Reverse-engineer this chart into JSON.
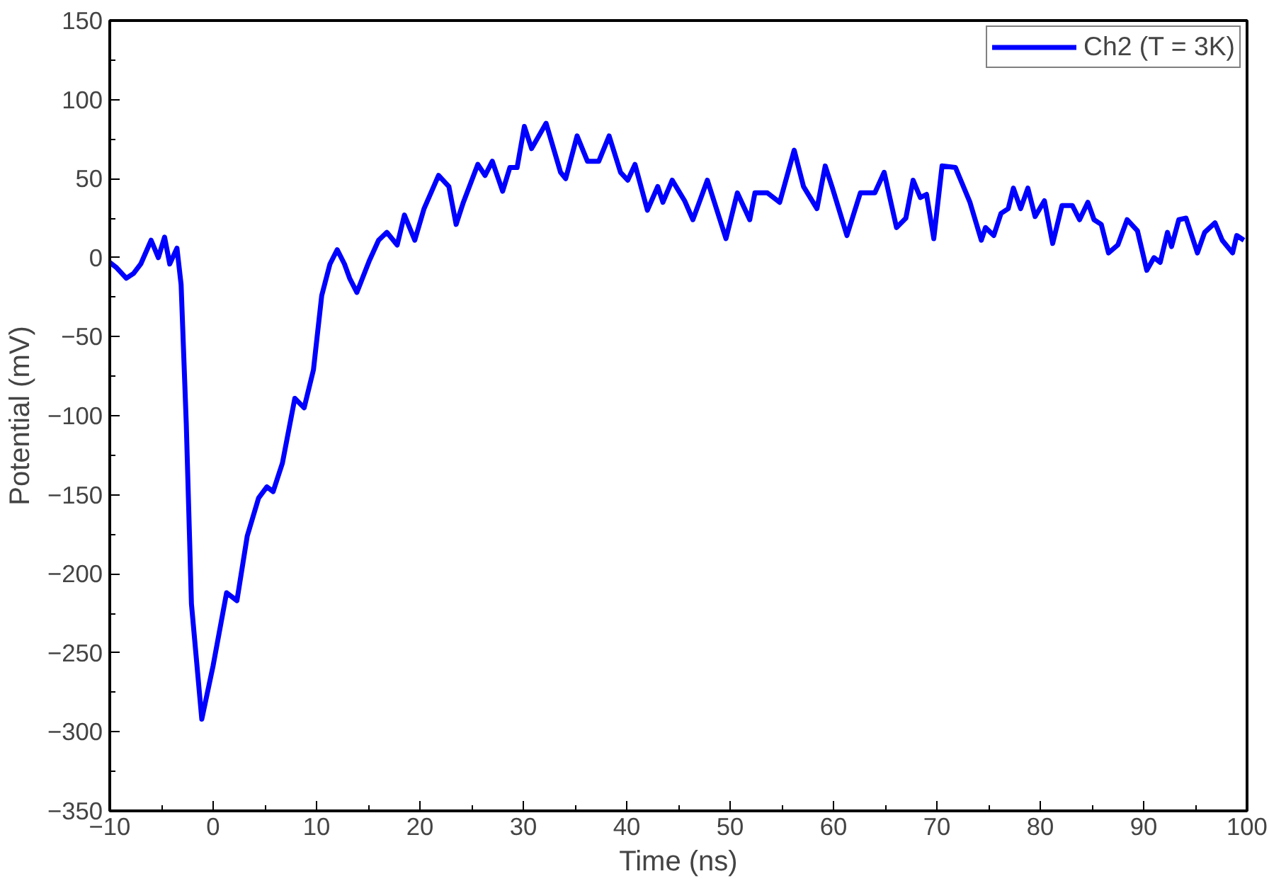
{
  "chart_data": {
    "type": "line",
    "xlabel": "Time (ns)",
    "ylabel": "Potential (mV)",
    "xlim": [
      -10,
      100
    ],
    "ylim": [
      -350,
      150
    ],
    "xticks": [
      -10,
      0,
      10,
      20,
      30,
      40,
      50,
      60,
      70,
      80,
      90,
      100
    ],
    "yticks": [
      -350,
      -300,
      -250,
      -200,
      -150,
      -100,
      -50,
      0,
      50,
      100,
      150
    ],
    "grid": false,
    "legend": "top right",
    "marker": "none",
    "line_style": "solid",
    "series": [
      {
        "name": "Ch2 (T = 3K)",
        "color": "#0000ff",
        "x": [
          -10,
          -9.4,
          -8.4,
          -7.7,
          -7,
          -6,
          -5.3,
          -4.7,
          -4.2,
          -3.5,
          -3.1,
          -2.6,
          -2.1,
          -1.1,
          0,
          1.3,
          2.3,
          3.3,
          4.4,
          5.2,
          5.8,
          6.7,
          7.9,
          8.8,
          9.7,
          10.5,
          11.3,
          12,
          12.7,
          13.2,
          13.9,
          15.1,
          16,
          16.8,
          17.8,
          18.5,
          19.5,
          20.4,
          21.8,
          22.8,
          23.5,
          24.2,
          25.6,
          26.3,
          27,
          28,
          28.7,
          29.4,
          30.1,
          30.8,
          32.2,
          33.6,
          34.1,
          35.2,
          36.2,
          37.3,
          38.3,
          39.4,
          40.1,
          40.8,
          42,
          43,
          43.5,
          44.4,
          45.6,
          46.4,
          47.8,
          49.6,
          50.7,
          51.9,
          52.4,
          53.6,
          54.8,
          56.2,
          57.1,
          58.4,
          59.2,
          59.9,
          61.3,
          62.6,
          64,
          64.9,
          66.1,
          67,
          67.7,
          68.4,
          69,
          69.7,
          70.5,
          71.8,
          73.2,
          74.3,
          74.7,
          75.5,
          76.2,
          76.9,
          77.4,
          78.1,
          78.8,
          79.5,
          80.4,
          81.2,
          82.1,
          83.1,
          83.8,
          84.6,
          85.2,
          85.9,
          86.6,
          87.5,
          88.4,
          89.4,
          90.3,
          91,
          91.6,
          92.3,
          92.7,
          93.4,
          94.1,
          95.2,
          95.9,
          96.9,
          97.6,
          98.6,
          99,
          99.7
        ],
        "values": [
          -3,
          -6,
          -13,
          -10,
          -4,
          11,
          0,
          13,
          -4,
          6,
          -17,
          -105,
          -219,
          -292,
          -258,
          -212,
          -217,
          -176,
          -152,
          -145,
          -148,
          -130,
          -89,
          -95,
          -71,
          -24,
          -4,
          5,
          -4,
          -13,
          -22,
          -2,
          11,
          16,
          8,
          27,
          11,
          31,
          52,
          45,
          21,
          35,
          59,
          52,
          61,
          42,
          57,
          57,
          83,
          69,
          85,
          54,
          50,
          77,
          61,
          61,
          77,
          54,
          49,
          59,
          30,
          45,
          35,
          49,
          36,
          24,
          49,
          12,
          41,
          24,
          41,
          41,
          35,
          68,
          45,
          31,
          58,
          44,
          14,
          41,
          41,
          54,
          19,
          25,
          49,
          38,
          40,
          12,
          58,
          57,
          35,
          11,
          19,
          14,
          28,
          31,
          44,
          31,
          44,
          26,
          36,
          9,
          33,
          33,
          24,
          35,
          24,
          21,
          3,
          8,
          24,
          17,
          -8,
          0,
          -3,
          16,
          7,
          24,
          25,
          3,
          16,
          22,
          11,
          3,
          14,
          11
        ]
      }
    ]
  }
}
